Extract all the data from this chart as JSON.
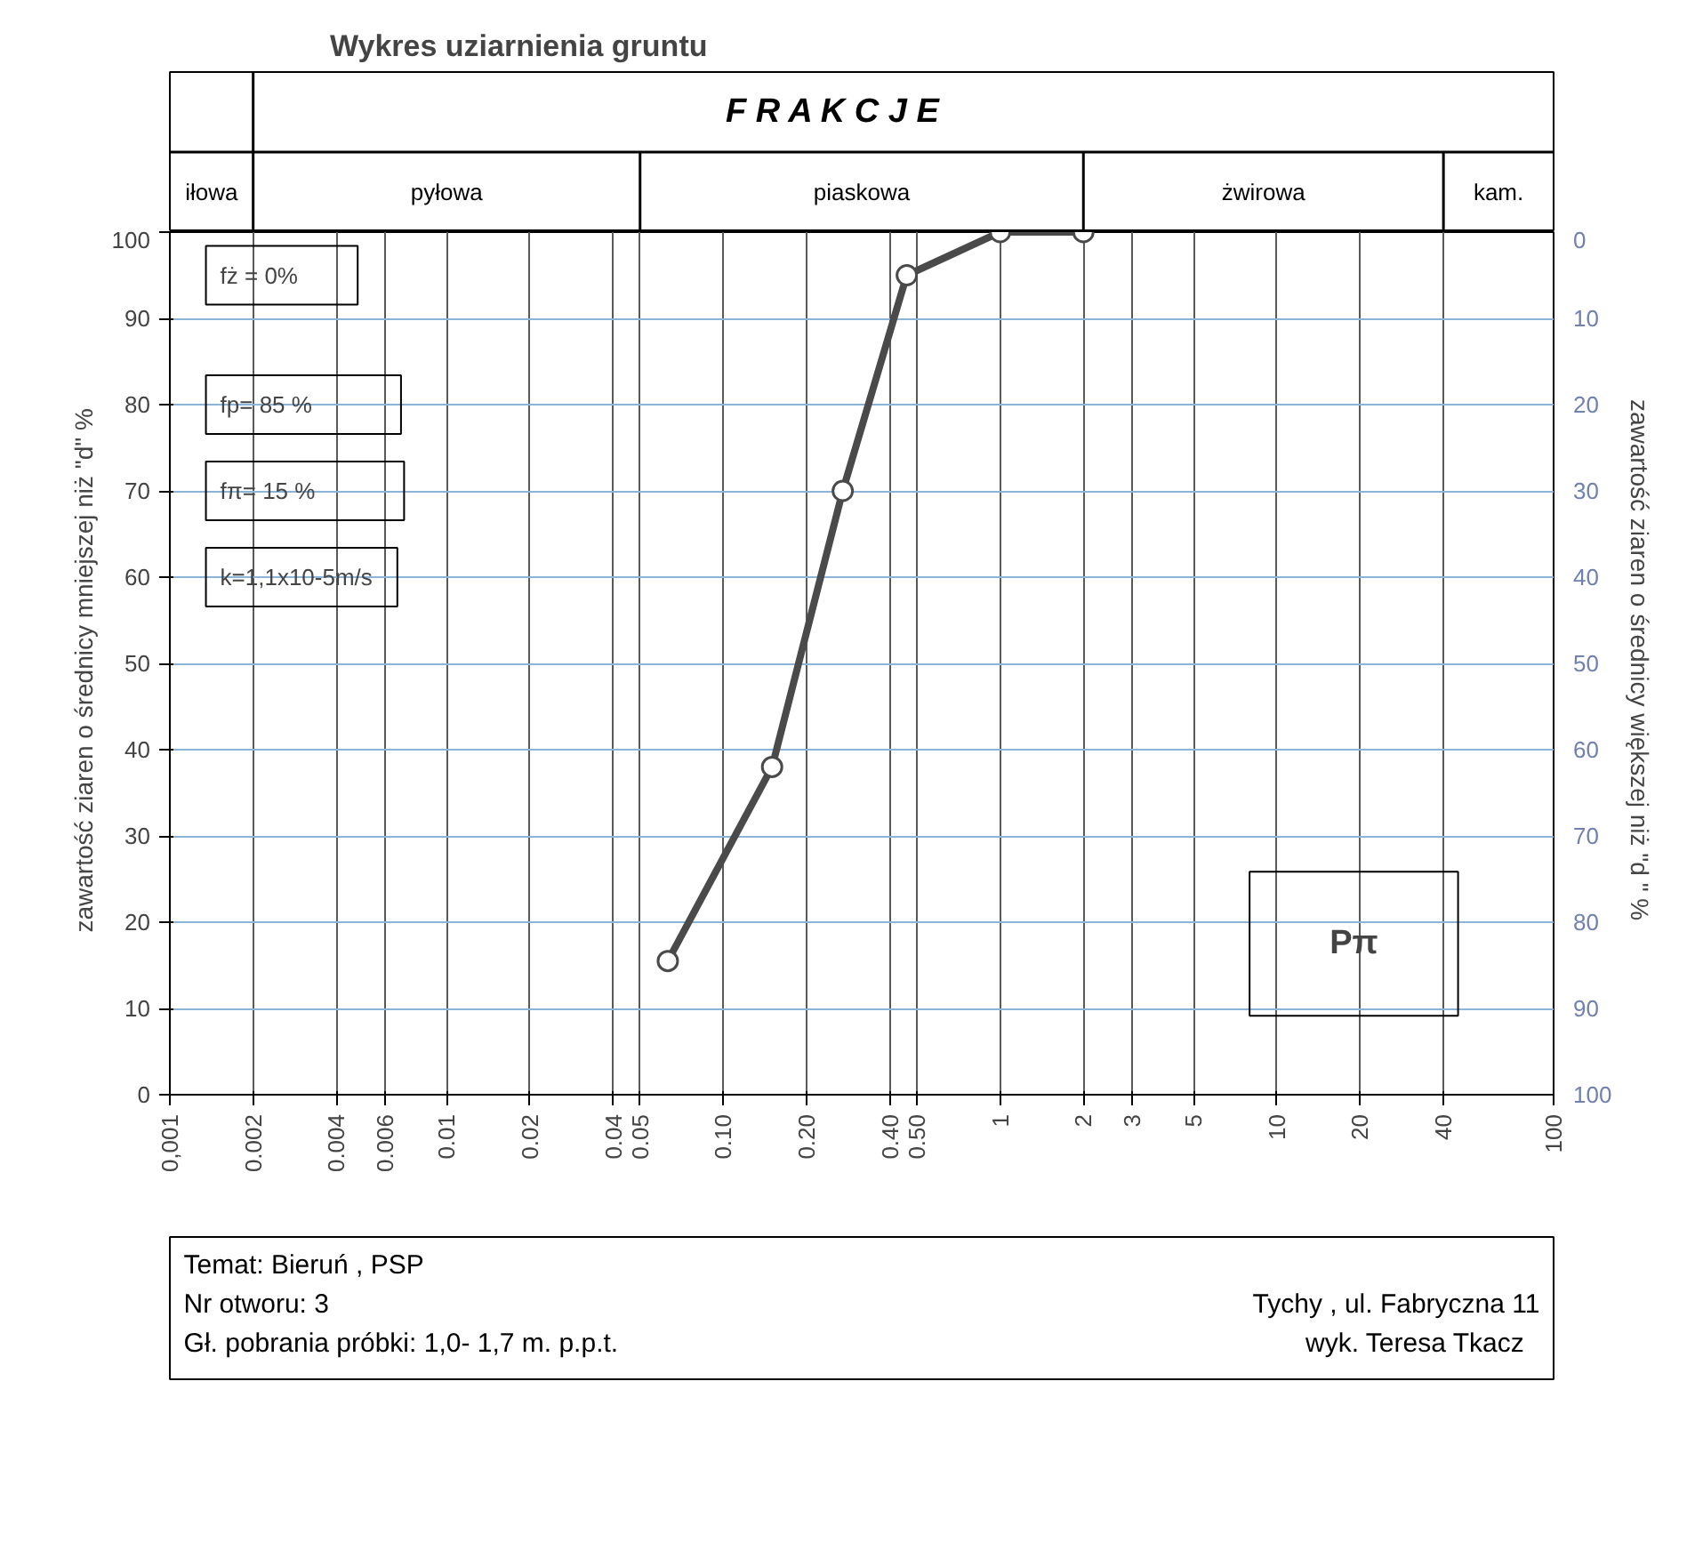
{
  "chart_data": {
    "type": "line",
    "title": "Wykres uziarnienia gruntu",
    "ylabel": "zawartość ziaren o średnicy  mniejszej niż  \"d\" %",
    "y2label": "zawartość ziaren o średnicy większej niż \"d \"  %",
    "x": [
      0.063,
      0.15,
      0.27,
      0.46,
      1.0,
      2.0
    ],
    "series": [
      {
        "color": "#4a4a4a",
        "values": [
          15.5,
          38,
          70,
          95,
          100,
          100
        ]
      }
    ],
    "marker": "circle",
    "line_style": "solid",
    "log": "x",
    "grid": true,
    "xlim": [
      0.001,
      100
    ],
    "xticks": [
      {
        "value": 0.001,
        "label": "0,001"
      },
      0.002,
      0.004,
      0.006,
      0.01,
      0.02,
      0.04,
      0.05,
      {
        "value": 0.1,
        "label": "0.10"
      },
      {
        "value": 0.2,
        "label": "0.20"
      },
      {
        "value": 0.4,
        "label": "0.40"
      },
      {
        "value": 0.5,
        "label": "0.50"
      },
      1,
      2,
      3,
      5,
      10,
      20,
      40,
      100
    ],
    "ylim": [
      0,
      100
    ],
    "yticks": [
      0,
      10,
      20,
      30,
      40,
      50,
      60,
      70,
      80,
      90,
      100
    ],
    "y2lim": [
      100,
      0
    ],
    "y2ticks": [
      0,
      10,
      20,
      30,
      40,
      50,
      60,
      70,
      80,
      90,
      100
    ],
    "annotations": [
      "F  R  A  K  C  J  E",
      "iłowa",
      "pyłowa",
      "piaskowa",
      "żwirowa",
      "kam.",
      "fż  = 0%",
      "fp= 85 %",
      "fπ= 15 %",
      "k=1,1x10-5m/s",
      "Pπ",
      "Temat: Bieruń , PSP",
      "Nr otworu:     3",
      "Gł. pobrania próbki: 1,0- 1,7  m. p.p.t.",
      "Tychy , ul. Fabryczna 11",
      "wyk.  Teresa  Tkacz"
    ]
  }
}
